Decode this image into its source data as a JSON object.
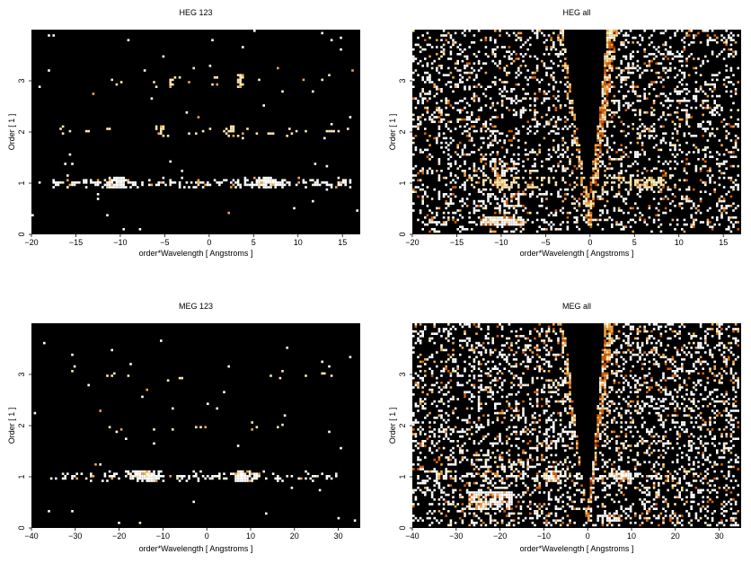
{
  "chart_data": [
    {
      "type": "heatmap",
      "title": "HEG 123",
      "xlabel": "order*Wavelength [ Angstroms ]",
      "ylabel": "Order [ 1 ]",
      "xlim": [
        -20,
        17
      ],
      "ylim": [
        0,
        4
      ],
      "xticks": [
        -20,
        -15,
        -10,
        -5,
        0,
        5,
        10,
        15
      ],
      "yticks": [
        0,
        1,
        2,
        3
      ],
      "background": "#000000",
      "colormap": [
        "#3a0a00",
        "#8a2500",
        "#d4600a",
        "#f5a845",
        "#ffe9b0",
        "#ffffff"
      ],
      "bands": [
        {
          "order": 1,
          "x_range": [
            -18,
            16
          ],
          "density": 0.55,
          "brightness": 0.85,
          "clusters": [
            {
              "x": -10.5,
              "w": 1.5,
              "boost": 1.0
            },
            {
              "x": 6.5,
              "w": 2.0,
              "boost": 0.9
            }
          ]
        },
        {
          "order": 2,
          "x_range": [
            -18,
            16
          ],
          "density": 0.1,
          "brightness": 0.7,
          "clusters": [
            {
              "x": 2.5,
              "w": 0.6,
              "boost": 0.8
            },
            {
              "x": -5.5,
              "w": 0.8,
              "boost": 0.5
            }
          ]
        },
        {
          "order": 3,
          "x_range": [
            -17,
            15
          ],
          "density": 0.06,
          "brightness": 0.7,
          "clusters": [
            {
              "x": 3.5,
              "w": 0.5,
              "boost": 1.2
            },
            {
              "x": -4.2,
              "w": 0.4,
              "boost": 1.0
            }
          ]
        }
      ],
      "background_noise": 0.004,
      "wedge": false
    },
    {
      "type": "heatmap",
      "title": "HEG all",
      "xlabel": "order*Wavelength [ Angstroms ]",
      "ylabel": "Order [ 1 ]",
      "xlim": [
        -20,
        17
      ],
      "ylim": [
        0,
        4
      ],
      "xticks": [
        -20,
        -15,
        -10,
        -5,
        0,
        5,
        10,
        15
      ],
      "yticks": [
        0,
        1,
        2,
        3
      ],
      "background": "#000000",
      "colormap": [
        "#3a0a00",
        "#8a2500",
        "#d4600a",
        "#f5a845",
        "#ffe9b0",
        "#ffffff"
      ],
      "bands": [
        {
          "order": 1,
          "x_range": [
            -14,
            12
          ],
          "density": 0.35,
          "brightness": 0.7,
          "clusters": [
            {
              "x": -10,
              "w": 2.5,
              "boost": 0.6
            },
            {
              "x": 7,
              "w": 2.5,
              "boost": 0.5
            }
          ]
        }
      ],
      "hot_patches": [
        {
          "x0": -12.5,
          "x1": -7.5,
          "y0": 0.15,
          "y1": 0.35,
          "density": 0.9
        },
        {
          "x0": -12.5,
          "x1": -8.0,
          "y0": 0.5,
          "y1": 1.5,
          "density": 0.45
        }
      ],
      "background_noise": 0.22,
      "wedge": true,
      "wedge_right_slope": 0.78,
      "wedge_left_slope": -0.95,
      "edge_bright": 0.85
    },
    {
      "type": "heatmap",
      "title": "MEG 123",
      "xlabel": "order*Wavelength [ Angstroms ]",
      "ylabel": "Order [ 1 ]",
      "xlim": [
        -40,
        35
      ],
      "ylim": [
        0,
        4
      ],
      "xticks": [
        -40,
        -30,
        -20,
        -10,
        0,
        10,
        20,
        30
      ],
      "yticks": [
        0,
        1,
        2,
        3
      ],
      "background": "#000000",
      "colormap": [
        "#3a0a00",
        "#8a2500",
        "#d4600a",
        "#f5a845",
        "#ffe9b0",
        "#ffffff"
      ],
      "bands": [
        {
          "order": 1,
          "x_range": [
            -36,
            30
          ],
          "density": 0.35,
          "brightness": 0.85,
          "clusters": [
            {
              "x": -14,
              "w": 5,
              "boost": 1.2
            },
            {
              "x": 8.5,
              "w": 3.5,
              "boost": 1.1
            }
          ]
        },
        {
          "order": 2,
          "x_range": [
            -36,
            30
          ],
          "density": 0.04,
          "brightness": 0.7,
          "clusters": []
        },
        {
          "order": 3,
          "x_range": [
            -36,
            30
          ],
          "density": 0.05,
          "brightness": 0.7,
          "clusters": []
        }
      ],
      "background_noise": 0.004,
      "wedge": false
    },
    {
      "type": "heatmap",
      "title": "MEG all",
      "xlabel": "order*Wavelength [ Angstroms ]",
      "ylabel": "Order [ 1 ]",
      "xlim": [
        -40,
        35
      ],
      "ylim": [
        0,
        4
      ],
      "xticks": [
        -40,
        -30,
        -20,
        -10,
        0,
        10,
        20,
        30
      ],
      "yticks": [
        0,
        1,
        2,
        3
      ],
      "background": "#000000",
      "colormap": [
        "#3a0a00",
        "#8a2500",
        "#d4600a",
        "#f5a845",
        "#ffe9b0",
        "#ffffff"
      ],
      "bands": [
        {
          "order": 1,
          "x_range": [
            -36,
            30
          ],
          "density": 0.55,
          "brightness": 0.85,
          "clusters": [
            {
              "x": -8,
              "w": 3,
              "boost": 1.0
            },
            {
              "x": 8,
              "w": 3.5,
              "boost": 1.0
            }
          ]
        }
      ],
      "hot_patches": [
        {
          "x0": -27,
          "x1": -17,
          "y0": 0.35,
          "y1": 0.7,
          "density": 0.85
        },
        {
          "x0": 2,
          "x1": 8,
          "y0": 0.1,
          "y1": 0.25,
          "density": 0.8
        },
        {
          "x0": -26,
          "x1": -14,
          "y0": 0.7,
          "y1": 1.5,
          "density": 0.35
        },
        {
          "x0": -9.6,
          "x1": -8.6,
          "y0": 0.3,
          "y1": 3.8,
          "density": 0.35
        }
      ],
      "background_noise": 0.25,
      "wedge": true,
      "wedge_right_slope": 1.55,
      "wedge_left_slope": -1.7,
      "edge_bright": 0.85
    }
  ]
}
